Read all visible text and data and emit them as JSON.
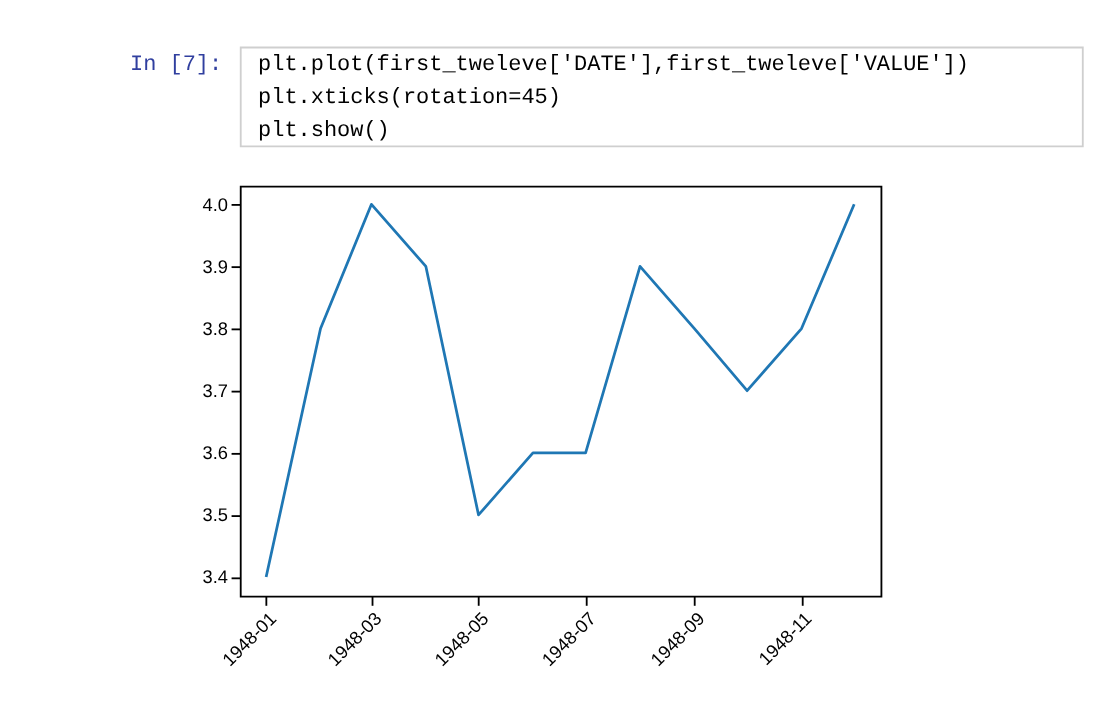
{
  "chart_data": {
    "type": "line",
    "annotations": [
      "In [7]:",
      "plt.plot(first_tweleve['DATE'],first_tweleve['VALUE'])",
      "plt.xticks(rotation=45)",
      "plt.show()"
    ],
    "x": [
      "1948-01",
      "1948-02",
      "1948-03",
      "1948-04",
      "1948-05",
      "1948-06",
      "1948-07",
      "1948-08",
      "1948-09",
      "1948-10",
      "1948-11",
      "1948-12"
    ],
    "series": [
      {
        "color": "#1f77b4",
        "values": [
          3.4,
          3.8,
          4.0,
          3.9,
          3.5,
          3.6,
          3.6,
          3.9,
          3.8,
          3.7,
          3.8,
          4.0
        ]
      }
    ],
    "xlim": [
      "1947-12-17",
      "1948-12-16"
    ],
    "xticks": [
      "1948-01",
      "1948-03",
      "1948-05",
      "1948-07",
      "1948-09",
      "1948-11"
    ],
    "ylim": [
      3.37,
      4.03
    ],
    "yticks": [
      3.4,
      3.5,
      3.6,
      3.7,
      3.8,
      3.9,
      {
        "value": 4.0,
        "label": "4.0"
      }
    ],
    "grid": false,
    "marker": "none",
    "line_style": "solid"
  }
}
